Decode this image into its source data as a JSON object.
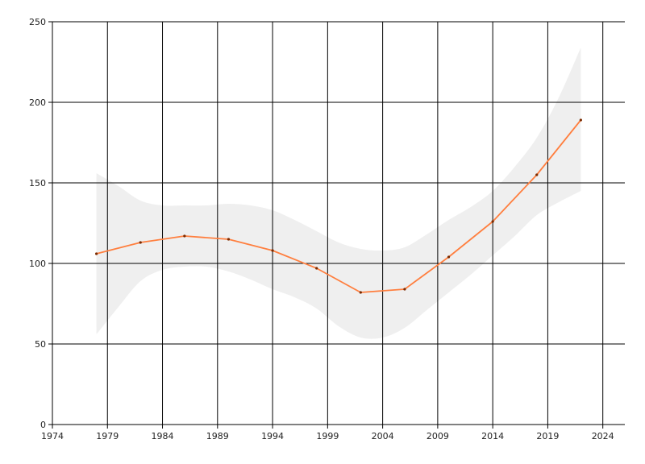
{
  "chart_data": {
    "type": "line",
    "title": "",
    "xlabel": "",
    "ylabel": "",
    "xlim": [
      1974,
      2026
    ],
    "ylim": [
      0,
      250
    ],
    "x_ticks": [
      "1974",
      "1979",
      "1984",
      "1989",
      "1994",
      "1999",
      "2004",
      "2009",
      "2014",
      "2019",
      "2024"
    ],
    "y_ticks": [
      "0",
      "50",
      "100",
      "150",
      "200",
      "250"
    ],
    "grid": true,
    "legend": "none",
    "series": [
      {
        "x": [
          1978,
          1982,
          1986,
          1990,
          1994,
          1998,
          2002,
          2006,
          2010,
          2014,
          2018,
          2022
        ],
        "y": [
          106,
          113,
          117,
          115,
          108,
          97,
          82,
          84,
          104,
          126,
          155,
          189
        ],
        "color": "#ff7f3f"
      }
    ],
    "confidence_band": {
      "x": [
        1978,
        1980,
        1982,
        1984,
        1986,
        1988,
        1990,
        1992,
        1994,
        1996,
        1998,
        2000,
        2002,
        2004,
        2006,
        2008,
        2010,
        2012,
        2014,
        2016,
        2018,
        2020,
        2022
      ],
      "upper": [
        156,
        148,
        139,
        136,
        136,
        136,
        137,
        136,
        133,
        127,
        120,
        113,
        109,
        108,
        110,
        118,
        127,
        135,
        145,
        160,
        178,
        203,
        234
      ],
      "lower": [
        56,
        73,
        89,
        96,
        98,
        98,
        95,
        90,
        84,
        79,
        72,
        61,
        54,
        54,
        60,
        71,
        82,
        93,
        105,
        117,
        130,
        138,
        145
      ],
      "color": "#efefef"
    }
  }
}
